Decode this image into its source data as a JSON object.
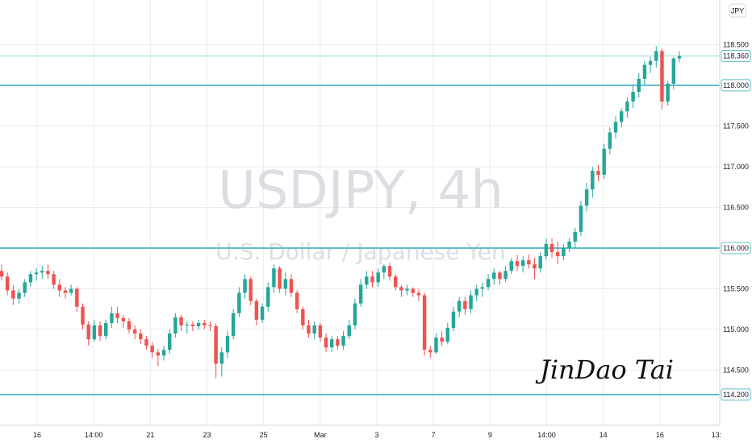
{
  "chart_data": {
    "type": "candlestick",
    "symbol": "USDJPY, 4h",
    "description": "U.S. Dollar / Japanese Yen",
    "currency": "JPY",
    "ylim": [
      114.1,
      118.85
    ],
    "y_ticks": [
      114.5,
      115.0,
      115.5,
      116.0,
      116.5,
      117.0,
      117.5,
      118.0,
      118.5
    ],
    "y_tick_labels": [
      "114.500",
      "115.000",
      "115.500",
      "116.000",
      "116.500",
      "117.000",
      "117.500",
      "118.000",
      "118.500"
    ],
    "x_tick_labels": [
      "16",
      "14:00",
      "21",
      "23",
      "25",
      "Mar",
      "3",
      "7",
      "9",
      "14:00",
      "14",
      "16",
      "13:"
    ],
    "horizontal_levels": [
      {
        "value": 118.0,
        "label": "118.000"
      },
      {
        "value": 116.0,
        "label": "116.000"
      },
      {
        "value": 114.2,
        "label": "114.200"
      }
    ],
    "last_price": {
      "value": 118.36,
      "label": "118.360"
    },
    "colors": {
      "up": "#26a69a",
      "down": "#ef5350",
      "level_line": "#5fbfc9",
      "watermark": "#d1d4dc",
      "grid": "#e9ebee"
    },
    "grid": true,
    "candles": [
      [
        115.72,
        115.8,
        115.6,
        115.65
      ],
      [
        115.65,
        115.7,
        115.42,
        115.48
      ],
      [
        115.48,
        115.55,
        115.3,
        115.38
      ],
      [
        115.38,
        115.5,
        115.32,
        115.45
      ],
      [
        115.45,
        115.62,
        115.4,
        115.58
      ],
      [
        115.58,
        115.72,
        115.52,
        115.68
      ],
      [
        115.68,
        115.75,
        115.6,
        115.7
      ],
      [
        115.7,
        115.78,
        115.62,
        115.72
      ],
      [
        115.72,
        115.8,
        115.62,
        115.68
      ],
      [
        115.68,
        115.72,
        115.5,
        115.55
      ],
      [
        115.55,
        115.62,
        115.4,
        115.48
      ],
      [
        115.48,
        115.52,
        115.38,
        115.45
      ],
      [
        115.45,
        115.55,
        115.42,
        115.5
      ],
      [
        115.5,
        115.52,
        115.22,
        115.28
      ],
      [
        115.28,
        115.32,
        115.0,
        115.06
      ],
      [
        115.06,
        115.1,
        114.8,
        114.88
      ],
      [
        114.88,
        115.12,
        114.85,
        115.05
      ],
      [
        115.05,
        115.1,
        114.86,
        114.92
      ],
      [
        114.92,
        115.12,
        114.88,
        115.08
      ],
      [
        115.08,
        115.28,
        115.02,
        115.2
      ],
      [
        115.2,
        115.28,
        115.08,
        115.14
      ],
      [
        115.14,
        115.18,
        115.02,
        115.1
      ],
      [
        115.1,
        115.14,
        114.95,
        115.0
      ],
      [
        115.0,
        115.05,
        114.88,
        114.95
      ],
      [
        114.95,
        115.0,
        114.82,
        114.88
      ],
      [
        114.88,
        114.92,
        114.75,
        114.8
      ],
      [
        114.8,
        114.84,
        114.65,
        114.72
      ],
      [
        114.72,
        114.76,
        114.55,
        114.68
      ],
      [
        114.68,
        114.8,
        114.62,
        114.75
      ],
      [
        114.75,
        115.0,
        114.7,
        114.95
      ],
      [
        114.95,
        115.2,
        114.9,
        115.15
      ],
      [
        115.15,
        115.18,
        114.98,
        115.05
      ],
      [
        115.05,
        115.1,
        114.95,
        115.06
      ],
      [
        115.06,
        115.1,
        114.98,
        115.04
      ],
      [
        115.04,
        115.12,
        115.0,
        115.08
      ],
      [
        115.08,
        115.12,
        115.0,
        115.05
      ],
      [
        115.05,
        115.1,
        114.98,
        115.04
      ],
      [
        115.04,
        115.08,
        114.4,
        114.58
      ],
      [
        114.58,
        114.78,
        114.42,
        114.72
      ],
      [
        114.72,
        114.98,
        114.65,
        114.92
      ],
      [
        114.92,
        115.25,
        114.88,
        115.2
      ],
      [
        115.2,
        115.52,
        115.15,
        115.45
      ],
      [
        115.45,
        115.68,
        115.38,
        115.62
      ],
      [
        115.62,
        115.65,
        115.3,
        115.35
      ],
      [
        115.35,
        115.38,
        115.05,
        115.12
      ],
      [
        115.12,
        115.32,
        115.08,
        115.28
      ],
      [
        115.28,
        115.58,
        115.22,
        115.52
      ],
      [
        115.52,
        115.8,
        115.45,
        115.75
      ],
      [
        115.75,
        115.78,
        115.45,
        115.5
      ],
      [
        115.5,
        115.7,
        115.42,
        115.62
      ],
      [
        115.62,
        115.68,
        115.4,
        115.45
      ],
      [
        115.45,
        115.48,
        115.2,
        115.25
      ],
      [
        115.25,
        115.28,
        115.0,
        115.05
      ],
      [
        115.05,
        115.12,
        114.9,
        114.95
      ],
      [
        114.95,
        115.1,
        114.88,
        115.05
      ],
      [
        115.05,
        115.08,
        114.85,
        114.9
      ],
      [
        114.9,
        114.95,
        114.72,
        114.78
      ],
      [
        114.78,
        114.92,
        114.72,
        114.88
      ],
      [
        114.88,
        114.92,
        114.75,
        114.8
      ],
      [
        114.8,
        114.98,
        114.75,
        114.92
      ],
      [
        114.92,
        115.12,
        114.88,
        115.05
      ],
      [
        115.05,
        115.38,
        115.0,
        115.32
      ],
      [
        115.32,
        115.62,
        115.28,
        115.55
      ],
      [
        115.55,
        115.72,
        115.5,
        115.65
      ],
      [
        115.65,
        115.72,
        115.52,
        115.58
      ],
      [
        115.58,
        115.75,
        115.52,
        115.7
      ],
      [
        115.7,
        115.8,
        115.62,
        115.78
      ],
      [
        115.78,
        115.82,
        115.6,
        115.65
      ],
      [
        115.65,
        115.68,
        115.48,
        115.52
      ],
      [
        115.52,
        115.55,
        115.4,
        115.48
      ],
      [
        115.48,
        115.55,
        115.42,
        115.5
      ],
      [
        115.5,
        115.52,
        115.4,
        115.45
      ],
      [
        115.45,
        115.5,
        115.35,
        115.42
      ],
      [
        115.42,
        115.45,
        114.68,
        114.75
      ],
      [
        114.75,
        114.8,
        114.65,
        114.72
      ],
      [
        114.72,
        114.95,
        114.7,
        114.9
      ],
      [
        114.9,
        114.98,
        114.8,
        114.85
      ],
      [
        114.85,
        115.08,
        114.82,
        115.02
      ],
      [
        115.02,
        115.28,
        114.98,
        115.22
      ],
      [
        115.22,
        115.4,
        115.15,
        115.35
      ],
      [
        115.35,
        115.4,
        115.18,
        115.25
      ],
      [
        115.25,
        115.48,
        115.2,
        115.42
      ],
      [
        115.42,
        115.55,
        115.35,
        115.5
      ],
      [
        115.5,
        115.58,
        115.4,
        115.52
      ],
      [
        115.52,
        115.68,
        115.48,
        115.62
      ],
      [
        115.62,
        115.75,
        115.55,
        115.7
      ],
      [
        115.7,
        115.72,
        115.55,
        115.62
      ],
      [
        115.62,
        115.78,
        115.58,
        115.72
      ],
      [
        115.72,
        115.88,
        115.68,
        115.84
      ],
      [
        115.84,
        115.92,
        115.72,
        115.78
      ],
      [
        115.78,
        115.9,
        115.7,
        115.85
      ],
      [
        115.85,
        115.92,
        115.75,
        115.8
      ],
      [
        115.8,
        115.88,
        115.62,
        115.75
      ],
      [
        115.75,
        115.95,
        115.7,
        115.9
      ],
      [
        115.9,
        116.12,
        115.85,
        116.05
      ],
      [
        116.05,
        116.12,
        115.88,
        115.95
      ],
      [
        115.95,
        116.08,
        115.8,
        115.9
      ],
      [
        115.9,
        116.05,
        115.85,
        116.0
      ],
      [
        116.0,
        116.12,
        115.95,
        116.08
      ],
      [
        116.08,
        116.25,
        116.0,
        116.2
      ],
      [
        116.2,
        116.58,
        116.15,
        116.52
      ],
      [
        116.52,
        116.8,
        116.45,
        116.72
      ],
      [
        116.72,
        117.0,
        116.62,
        116.95
      ],
      [
        116.95,
        117.02,
        116.82,
        116.9
      ],
      [
        116.9,
        117.28,
        116.85,
        117.22
      ],
      [
        117.22,
        117.48,
        117.15,
        117.42
      ],
      [
        117.42,
        117.62,
        117.35,
        117.55
      ],
      [
        117.55,
        117.72,
        117.48,
        117.68
      ],
      [
        117.68,
        117.85,
        117.6,
        117.8
      ],
      [
        117.8,
        118.0,
        117.72,
        117.92
      ],
      [
        117.92,
        118.15,
        117.85,
        118.08
      ],
      [
        118.08,
        118.3,
        118.0,
        118.25
      ],
      [
        118.25,
        118.35,
        118.15,
        118.3
      ],
      [
        118.3,
        118.48,
        118.22,
        118.42
      ],
      [
        118.42,
        118.45,
        117.7,
        117.8
      ],
      [
        117.8,
        118.05,
        117.75,
        118.02
      ],
      [
        118.02,
        118.35,
        117.95,
        118.33
      ],
      [
        118.33,
        118.42,
        118.28,
        118.36
      ]
    ]
  }
}
